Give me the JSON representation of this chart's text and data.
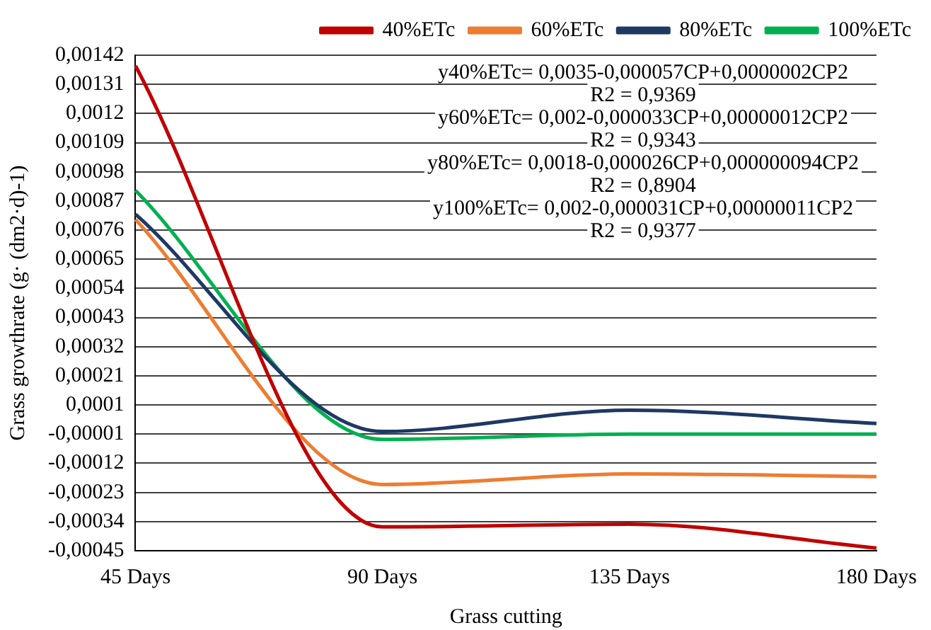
{
  "chart_data": {
    "type": "line",
    "xlabel": "Grass cutting",
    "ylabel": "Grass growthrate (g· (dm2·d)-1)",
    "categories": [
      "45 Days",
      "90 Days",
      "135 Days",
      "180 Days"
    ],
    "series": [
      {
        "name": "40%ETc",
        "color": "#c00000",
        "values": [
          0.00138,
          -0.00036,
          -0.00035,
          -0.00044
        ]
      },
      {
        "name": "60%ETc",
        "color": "#ed7d31",
        "values": [
          0.0008,
          -0.0002,
          -0.00016,
          -0.00017
        ]
      },
      {
        "name": "80%ETc",
        "color": "#1f3864",
        "values": [
          0.00082,
          0.0,
          8e-05,
          3e-05
        ]
      },
      {
        "name": "100%ETc",
        "color": "#00b050",
        "values": [
          0.00091,
          -3e-05,
          -1e-05,
          -1e-05
        ]
      }
    ],
    "ylim": [
      -0.00045,
      0.00142
    ],
    "yticks": [
      {
        "value": 0.00142,
        "label": "0,00142"
      },
      {
        "value": 0.00131,
        "label": "0,00131"
      },
      {
        "value": 0.0012,
        "label": "0,0012"
      },
      {
        "value": 0.00109,
        "label": "0,00109"
      },
      {
        "value": 0.00098,
        "label": "0,00098"
      },
      {
        "value": 0.00087,
        "label": "0,00087"
      },
      {
        "value": 0.00076,
        "label": "0,00076"
      },
      {
        "value": 0.00065,
        "label": "0,00065"
      },
      {
        "value": 0.00054,
        "label": "0,00054"
      },
      {
        "value": 0.00043,
        "label": "0,00043"
      },
      {
        "value": 0.00032,
        "label": "0,00032"
      },
      {
        "value": 0.00021,
        "label": "0,00021"
      },
      {
        "value": 0.0001,
        "label": "0,0001"
      },
      {
        "value": -1e-05,
        "label": "-0,00001"
      },
      {
        "value": -0.00012,
        "label": "-0,00012"
      },
      {
        "value": -0.00023,
        "label": "-0,00023"
      },
      {
        "value": -0.00034,
        "label": "-0,00034"
      },
      {
        "value": -0.00045,
        "label": "-0,00045"
      }
    ],
    "grid": "y",
    "legend": "top right",
    "marker": "none",
    "line_style": "solid",
    "annotations": [
      "y40%ETc= 0,0035-0,000057CP+0,0000002CP2",
      "R2 = 0,9369",
      "y60%ETc= 0,002-0,000033CP+0,00000012CP2",
      "R2 = 0,9343",
      "y80%ETc= 0,0018-0,000026CP+0,000000094CP2",
      "R2 = 0,8904",
      "y100%ETc= 0,002-0,000031CP+0,00000011CP2",
      "R2 = 0,9377"
    ]
  }
}
